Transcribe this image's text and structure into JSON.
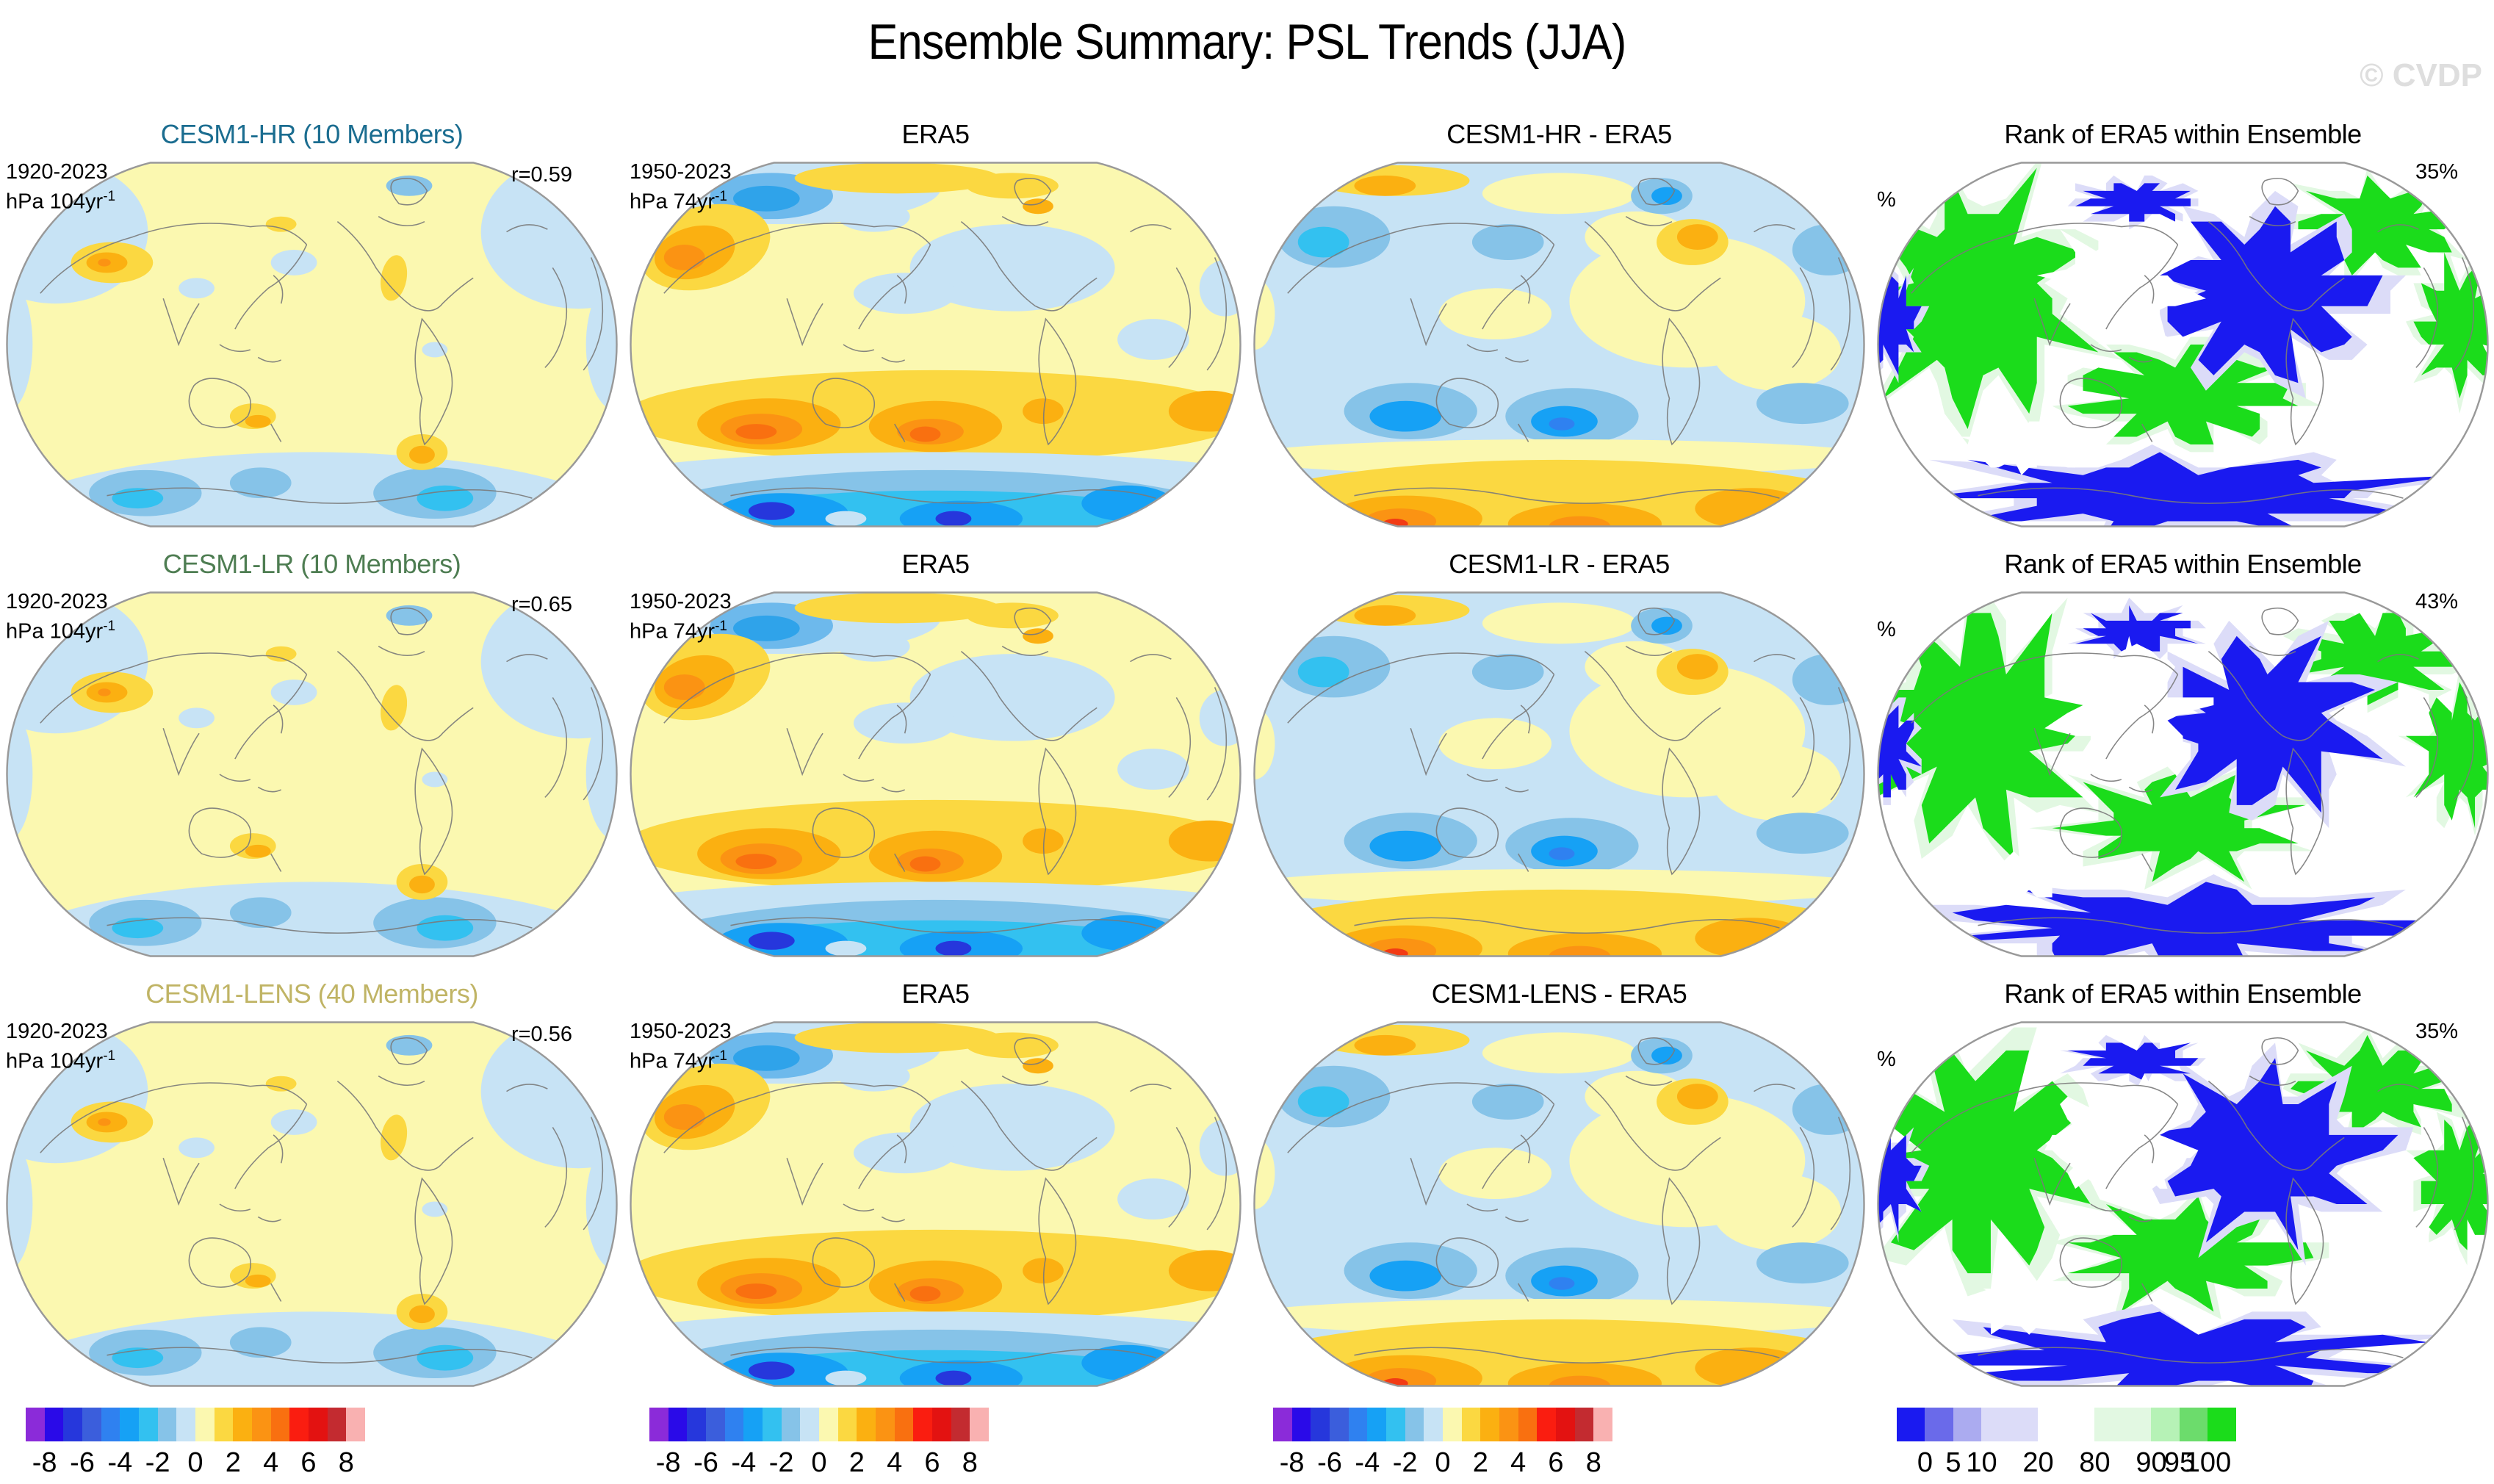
{
  "figure_title": "Ensemble Summary: PSL Trends (JJA)",
  "watermark": "© CVDP",
  "rows": [
    {
      "panels": [
        {
          "title": "CESM1-HR (10 Members)",
          "title_color": "#1b6d90",
          "period": "1920-2023",
          "units": "hPa 104yr",
          "units_sup": "-1",
          "corr": "r=0.59",
          "style": "model_trend"
        },
        {
          "title": "ERA5",
          "title_color": "#000000",
          "period": "1950-2023",
          "units": "hPa 74yr",
          "units_sup": "-1",
          "style": "era5_trend"
        },
        {
          "title": "CESM1-HR - ERA5",
          "title_color": "#000000",
          "style": "diff"
        },
        {
          "title": "Rank of ERA5 within Ensemble",
          "title_color": "#000000",
          "left_label": "%",
          "right_label": "35%",
          "style": "rank"
        }
      ]
    },
    {
      "panels": [
        {
          "title": "CESM1-LR (10 Members)",
          "title_color": "#4e7d52",
          "period": "1920-2023",
          "units": "hPa 104yr",
          "units_sup": "-1",
          "corr": "r=0.65",
          "style": "model_trend"
        },
        {
          "title": "ERA5",
          "title_color": "#000000",
          "period": "1950-2023",
          "units": "hPa 74yr",
          "units_sup": "-1",
          "style": "era5_trend"
        },
        {
          "title": "CESM1-LR - ERA5",
          "title_color": "#000000",
          "style": "diff"
        },
        {
          "title": "Rank of ERA5 within Ensemble",
          "title_color": "#000000",
          "left_label": "%",
          "right_label": "43%",
          "style": "rank"
        }
      ]
    },
    {
      "panels": [
        {
          "title": "CESM1-LENS (40 Members)",
          "title_color": "#c0b465",
          "period": "1920-2023",
          "units": "hPa 104yr",
          "units_sup": "-1",
          "corr": "r=0.56",
          "style": "model_trend"
        },
        {
          "title": "ERA5",
          "title_color": "#000000",
          "period": "1950-2023",
          "units": "hPa 74yr",
          "units_sup": "-1",
          "style": "era5_trend"
        },
        {
          "title": "CESM1-LENS - ERA5",
          "title_color": "#000000",
          "style": "diff"
        },
        {
          "title": "Rank of ERA5 within Ensemble",
          "title_color": "#000000",
          "left_label": "%",
          "right_label": "35%",
          "style": "rank"
        }
      ]
    }
  ],
  "colorbars": {
    "trend": {
      "colors": [
        "#8b2bd9",
        "#2a0ae8",
        "#2637dc",
        "#3b5edc",
        "#2f81f0",
        "#16a1f5",
        "#33c1f0",
        "#86c3e8",
        "#c7e3f5",
        "#fbf8b0",
        "#fbd841",
        "#fbb011",
        "#fb9313",
        "#f97010",
        "#fa1d10",
        "#e31211",
        "#c32b30",
        "#f9b1b1"
      ],
      "tick_labels": [
        "-8",
        "-6",
        "-4",
        "-2",
        "0",
        "2",
        "4",
        "6",
        "8"
      ]
    },
    "rank": {
      "colors": [
        "#1a1af0",
        "#6a6aea",
        "#ababf0",
        "#dcdcf8",
        "#ffffff",
        "#e2f8e2",
        "#b6f2b6",
        "#6cdc6c",
        "#1bdc1b"
      ],
      "widths": [
        1,
        1,
        1,
        2,
        2,
        2,
        1,
        1,
        1
      ],
      "tick_labels": [
        "0",
        "5",
        "10",
        "20",
        "80",
        "90",
        "95",
        "100"
      ]
    }
  },
  "chart_data": {
    "type": "heatmap",
    "subtype": "global-map-grid",
    "title": "Ensemble Summary: PSL Trends (JJA)",
    "variable": "PSL linear trends",
    "season": "JJA",
    "projection": "Robinson-style world maps, Pacific-centered",
    "grid": "3 rows x 4 columns",
    "columns": [
      "Ensemble mean trend",
      "ERA5 observed trend",
      "Ensemble minus ERA5 difference",
      "Rank of ERA5 within Ensemble"
    ],
    "rows": [
      {
        "ensemble": "CESM1-HR",
        "members": 10,
        "model_period": "1920-2023",
        "model_units": "hPa 104yr⁻¹",
        "era5_period": "1950-2023",
        "era5_units": "hPa 74yr⁻¹",
        "pattern_correlation_r": 0.59,
        "rank_percent": 35
      },
      {
        "ensemble": "CESM1-LR",
        "members": 10,
        "model_period": "1920-2023",
        "model_units": "hPa 104yr⁻¹",
        "era5_period": "1950-2023",
        "era5_units": "hPa 74yr⁻¹",
        "pattern_correlation_r": 0.65,
        "rank_percent": 43
      },
      {
        "ensemble": "CESM1-LENS",
        "members": 40,
        "model_period": "1920-2023",
        "model_units": "hPa 104yr⁻¹",
        "era5_period": "1950-2023",
        "era5_units": "hPa 74yr⁻¹",
        "pattern_correlation_r": 0.56,
        "rank_percent": 35
      }
    ],
    "trend_colorbar": {
      "ticks": [
        -8,
        -6,
        -4,
        -2,
        0,
        2,
        4,
        6,
        8
      ],
      "n_segments": 18,
      "units": "hPa per period"
    },
    "rank_colorbar": {
      "ticks": [
        0,
        5,
        10,
        20,
        80,
        90,
        95,
        100
      ],
      "n_segments": 9,
      "units": "%"
    }
  }
}
